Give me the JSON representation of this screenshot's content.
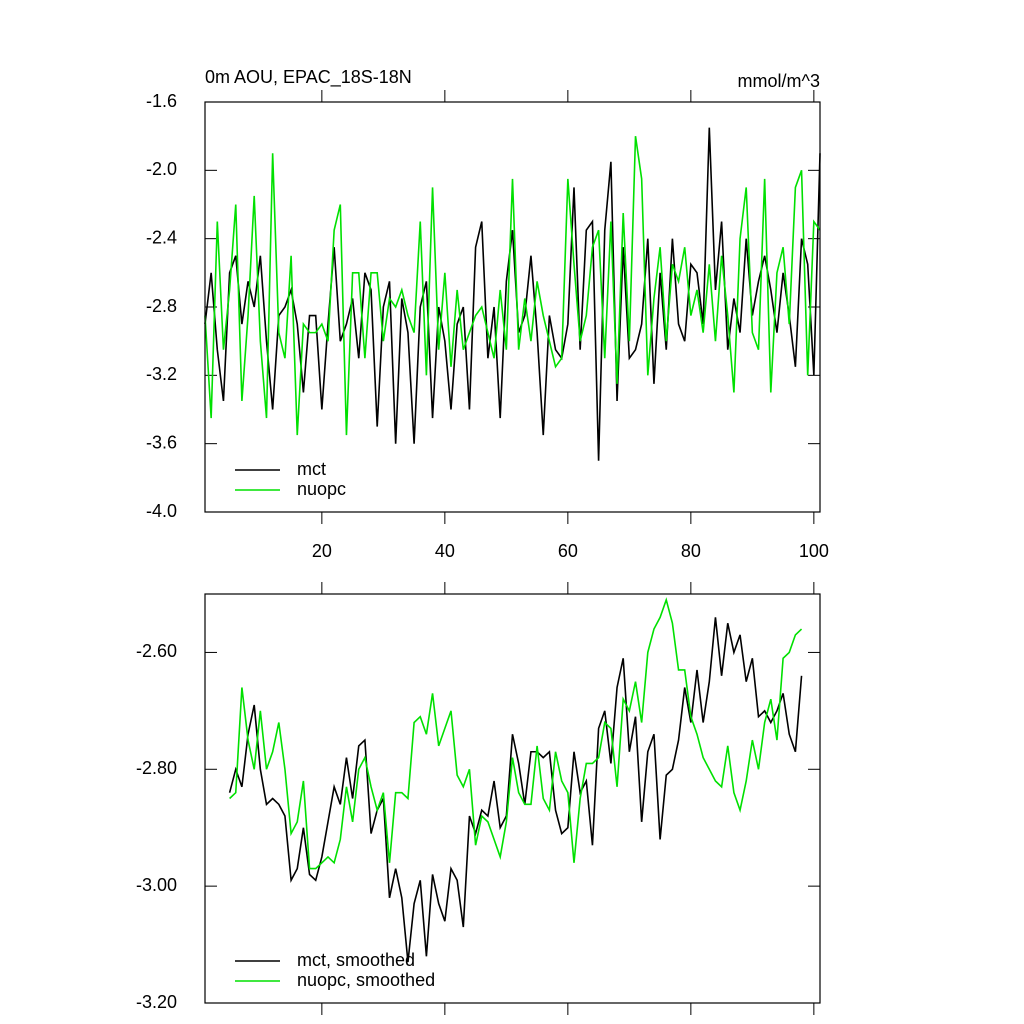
{
  "chart_data": [
    {
      "type": "line",
      "title": "0m AOU, EPAC_18S-18N",
      "subtitle": "mmol/m^3",
      "x": [
        1,
        2,
        3,
        4,
        5,
        6,
        7,
        8,
        9,
        10,
        11,
        12,
        13,
        14,
        15,
        16,
        17,
        18,
        19,
        20,
        21,
        22,
        23,
        24,
        25,
        26,
        27,
        28,
        29,
        30,
        31,
        32,
        33,
        34,
        35,
        36,
        37,
        38,
        39,
        40,
        41,
        42,
        43,
        44,
        45,
        46,
        47,
        48,
        49,
        50,
        51,
        52,
        53,
        54,
        55,
        56,
        57,
        58,
        59,
        60,
        61,
        62,
        63,
        64,
        65,
        66,
        67,
        68,
        69,
        70,
        71,
        72,
        73,
        74,
        75,
        76,
        77,
        78,
        79,
        80,
        81,
        82,
        83,
        84,
        85,
        86,
        87,
        88,
        89,
        90,
        91,
        92,
        93,
        94,
        95,
        96,
        97,
        98,
        99,
        100,
        101
      ],
      "series": [
        {
          "name": "mct",
          "color": "#000000",
          "values": [
            -2.9,
            -2.6,
            -3.05,
            -3.35,
            -2.6,
            -2.5,
            -2.9,
            -2.65,
            -2.8,
            -2.5,
            -3.0,
            -3.4,
            -2.85,
            -2.8,
            -2.7,
            -2.9,
            -3.3,
            -2.85,
            -2.85,
            -3.4,
            -2.9,
            -2.45,
            -3.0,
            -2.9,
            -2.75,
            -3.1,
            -2.6,
            -2.7,
            -3.5,
            -2.8,
            -2.65,
            -3.6,
            -2.75,
            -2.95,
            -3.6,
            -2.8,
            -2.65,
            -3.45,
            -2.8,
            -3.0,
            -3.4,
            -2.9,
            -2.8,
            -3.4,
            -2.45,
            -2.3,
            -3.1,
            -2.8,
            -3.45,
            -2.65,
            -2.35,
            -2.95,
            -2.85,
            -2.5,
            -2.95,
            -3.55,
            -2.85,
            -3.05,
            -3.1,
            -2.9,
            -2.1,
            -3.05,
            -2.35,
            -2.3,
            -3.7,
            -2.35,
            -1.95,
            -3.35,
            -2.45,
            -3.1,
            -3.05,
            -2.9,
            -2.4,
            -3.25,
            -2.6,
            -3.05,
            -2.4,
            -2.9,
            -3.0,
            -2.55,
            -2.6,
            -2.9,
            -1.75,
            -2.7,
            -2.3,
            -3.05,
            -2.75,
            -2.95,
            -2.4,
            -2.85,
            -2.65,
            -2.5,
            -2.7,
            -2.95,
            -2.6,
            -2.85,
            -3.15,
            -2.4,
            -2.55,
            -3.2,
            -1.9
          ]
        },
        {
          "name": "nuopc",
          "color": "#00e000",
          "values": [
            -2.85,
            -3.45,
            -2.3,
            -3.05,
            -2.7,
            -2.2,
            -3.35,
            -2.85,
            -2.15,
            -3.0,
            -3.45,
            -1.9,
            -2.95,
            -3.1,
            -2.5,
            -3.55,
            -2.9,
            -2.95,
            -2.95,
            -2.9,
            -3.0,
            -2.35,
            -2.2,
            -3.55,
            -2.6,
            -2.6,
            -3.1,
            -2.6,
            -2.6,
            -3.0,
            -2.75,
            -2.8,
            -2.7,
            -2.85,
            -2.95,
            -2.3,
            -3.2,
            -2.1,
            -3.05,
            -2.6,
            -3.15,
            -2.7,
            -3.05,
            -2.95,
            -2.85,
            -2.8,
            -2.95,
            -3.1,
            -2.7,
            -3.05,
            -2.05,
            -3.05,
            -2.75,
            -3.0,
            -2.65,
            -2.85,
            -3.0,
            -3.15,
            -3.1,
            -2.05,
            -2.55,
            -3.0,
            -2.85,
            -2.45,
            -2.35,
            -3.1,
            -2.3,
            -3.25,
            -2.25,
            -3.0,
            -1.8,
            -2.05,
            -3.2,
            -2.75,
            -2.45,
            -3.0,
            -2.55,
            -2.65,
            -2.45,
            -2.85,
            -2.7,
            -2.95,
            -2.55,
            -3.0,
            -2.5,
            -2.85,
            -3.3,
            -2.4,
            -2.1,
            -2.95,
            -3.05,
            -2.05,
            -3.3,
            -2.6,
            -2.45,
            -2.9,
            -2.1,
            -2.0,
            -3.2,
            -2.3,
            -2.35
          ]
        }
      ],
      "xlim": [
        1,
        101
      ],
      "xticks": [
        20,
        40,
        60,
        80,
        100
      ],
      "ylim": [
        -4,
        -1.6
      ],
      "yticks": [
        {
          "value": -4,
          "label": "-4.0"
        },
        -3.6,
        -3.2,
        -2.8,
        -2.4,
        {
          "value": -2,
          "label": "-2.0"
        },
        -1.6
      ],
      "legend": "lower left"
    },
    {
      "type": "line",
      "x": [
        5,
        6,
        7,
        8,
        9,
        10,
        11,
        12,
        13,
        14,
        15,
        16,
        17,
        18,
        19,
        20,
        21,
        22,
        23,
        24,
        25,
        26,
        27,
        28,
        29,
        30,
        31,
        32,
        33,
        34,
        35,
        36,
        37,
        38,
        39,
        40,
        41,
        42,
        43,
        44,
        45,
        46,
        47,
        48,
        49,
        50,
        51,
        52,
        53,
        54,
        55,
        56,
        57,
        58,
        59,
        60,
        61,
        62,
        63,
        64,
        65,
        66,
        67,
        68,
        69,
        70,
        71,
        72,
        73,
        74,
        75,
        76,
        77,
        78,
        79,
        80,
        81,
        82,
        83,
        84,
        85,
        86,
        87,
        88,
        89,
        90,
        91,
        92,
        93,
        94,
        95,
        96,
        97,
        98
      ],
      "series": [
        {
          "name": "mct, smoothed",
          "color": "#000000",
          "values": [
            -2.84,
            -2.8,
            -2.83,
            -2.74,
            -2.69,
            -2.8,
            -2.86,
            -2.85,
            -2.86,
            -2.88,
            -2.99,
            -2.97,
            -2.9,
            -2.98,
            -2.99,
            -2.95,
            -2.89,
            -2.83,
            -2.86,
            -2.78,
            -2.85,
            -2.76,
            -2.75,
            -2.91,
            -2.87,
            -2.85,
            -3.02,
            -2.97,
            -3.02,
            -3.13,
            -3.03,
            -2.99,
            -3.12,
            -2.98,
            -3.03,
            -3.06,
            -2.97,
            -2.99,
            -3.07,
            -2.88,
            -2.91,
            -2.87,
            -2.88,
            -2.82,
            -2.9,
            -2.88,
            -2.74,
            -2.79,
            -2.86,
            -2.77,
            -2.77,
            -2.78,
            -2.77,
            -2.87,
            -2.91,
            -2.9,
            -2.77,
            -2.84,
            -2.82,
            -2.93,
            -2.73,
            -2.7,
            -2.79,
            -2.66,
            -2.61,
            -2.77,
            -2.71,
            -2.89,
            -2.77,
            -2.74,
            -2.92,
            -2.81,
            -2.8,
            -2.75,
            -2.66,
            -2.72,
            -2.63,
            -2.72,
            -2.65,
            -2.54,
            -2.64,
            -2.55,
            -2.6,
            -2.57,
            -2.65,
            -2.61,
            -2.71,
            -2.7,
            -2.72,
            -2.7,
            -2.67,
            -2.74,
            -2.77,
            -2.64
          ]
        },
        {
          "name": "nuopc, smoothed",
          "color": "#00e000",
          "values": [
            -2.85,
            -2.84,
            -2.66,
            -2.75,
            -2.8,
            -2.7,
            -2.8,
            -2.77,
            -2.72,
            -2.8,
            -2.91,
            -2.89,
            -2.82,
            -2.97,
            -2.97,
            -2.96,
            -2.95,
            -2.96,
            -2.92,
            -2.83,
            -2.89,
            -2.8,
            -2.78,
            -2.83,
            -2.87,
            -2.84,
            -2.96,
            -2.84,
            -2.84,
            -2.85,
            -2.72,
            -2.71,
            -2.74,
            -2.67,
            -2.76,
            -2.73,
            -2.7,
            -2.81,
            -2.83,
            -2.8,
            -2.93,
            -2.88,
            -2.89,
            -2.92,
            -2.95,
            -2.89,
            -2.78,
            -2.84,
            -2.86,
            -2.86,
            -2.76,
            -2.85,
            -2.87,
            -2.77,
            -2.82,
            -2.84,
            -2.96,
            -2.85,
            -2.79,
            -2.79,
            -2.78,
            -2.72,
            -2.73,
            -2.83,
            -2.68,
            -2.7,
            -2.65,
            -2.72,
            -2.6,
            -2.56,
            -2.54,
            -2.51,
            -2.55,
            -2.63,
            -2.63,
            -2.71,
            -2.74,
            -2.78,
            -2.8,
            -2.82,
            -2.83,
            -2.76,
            -2.84,
            -2.87,
            -2.82,
            -2.75,
            -2.8,
            -2.72,
            -2.68,
            -2.75,
            -2.61,
            -2.6,
            -2.57,
            -2.56
          ]
        }
      ],
      "xlim": [
        1,
        101
      ],
      "xticks": [
        20,
        40,
        60,
        80,
        100
      ],
      "ylim": [
        -3.2,
        -2.5
      ],
      "yticks": [
        {
          "value": -3.2,
          "label": "-3.20"
        },
        {
          "value": -3,
          "label": "-3.00"
        },
        {
          "value": -2.8,
          "label": "-2.80"
        },
        {
          "value": -2.6,
          "label": "-2.60"
        }
      ],
      "legend": "lower left"
    }
  ]
}
